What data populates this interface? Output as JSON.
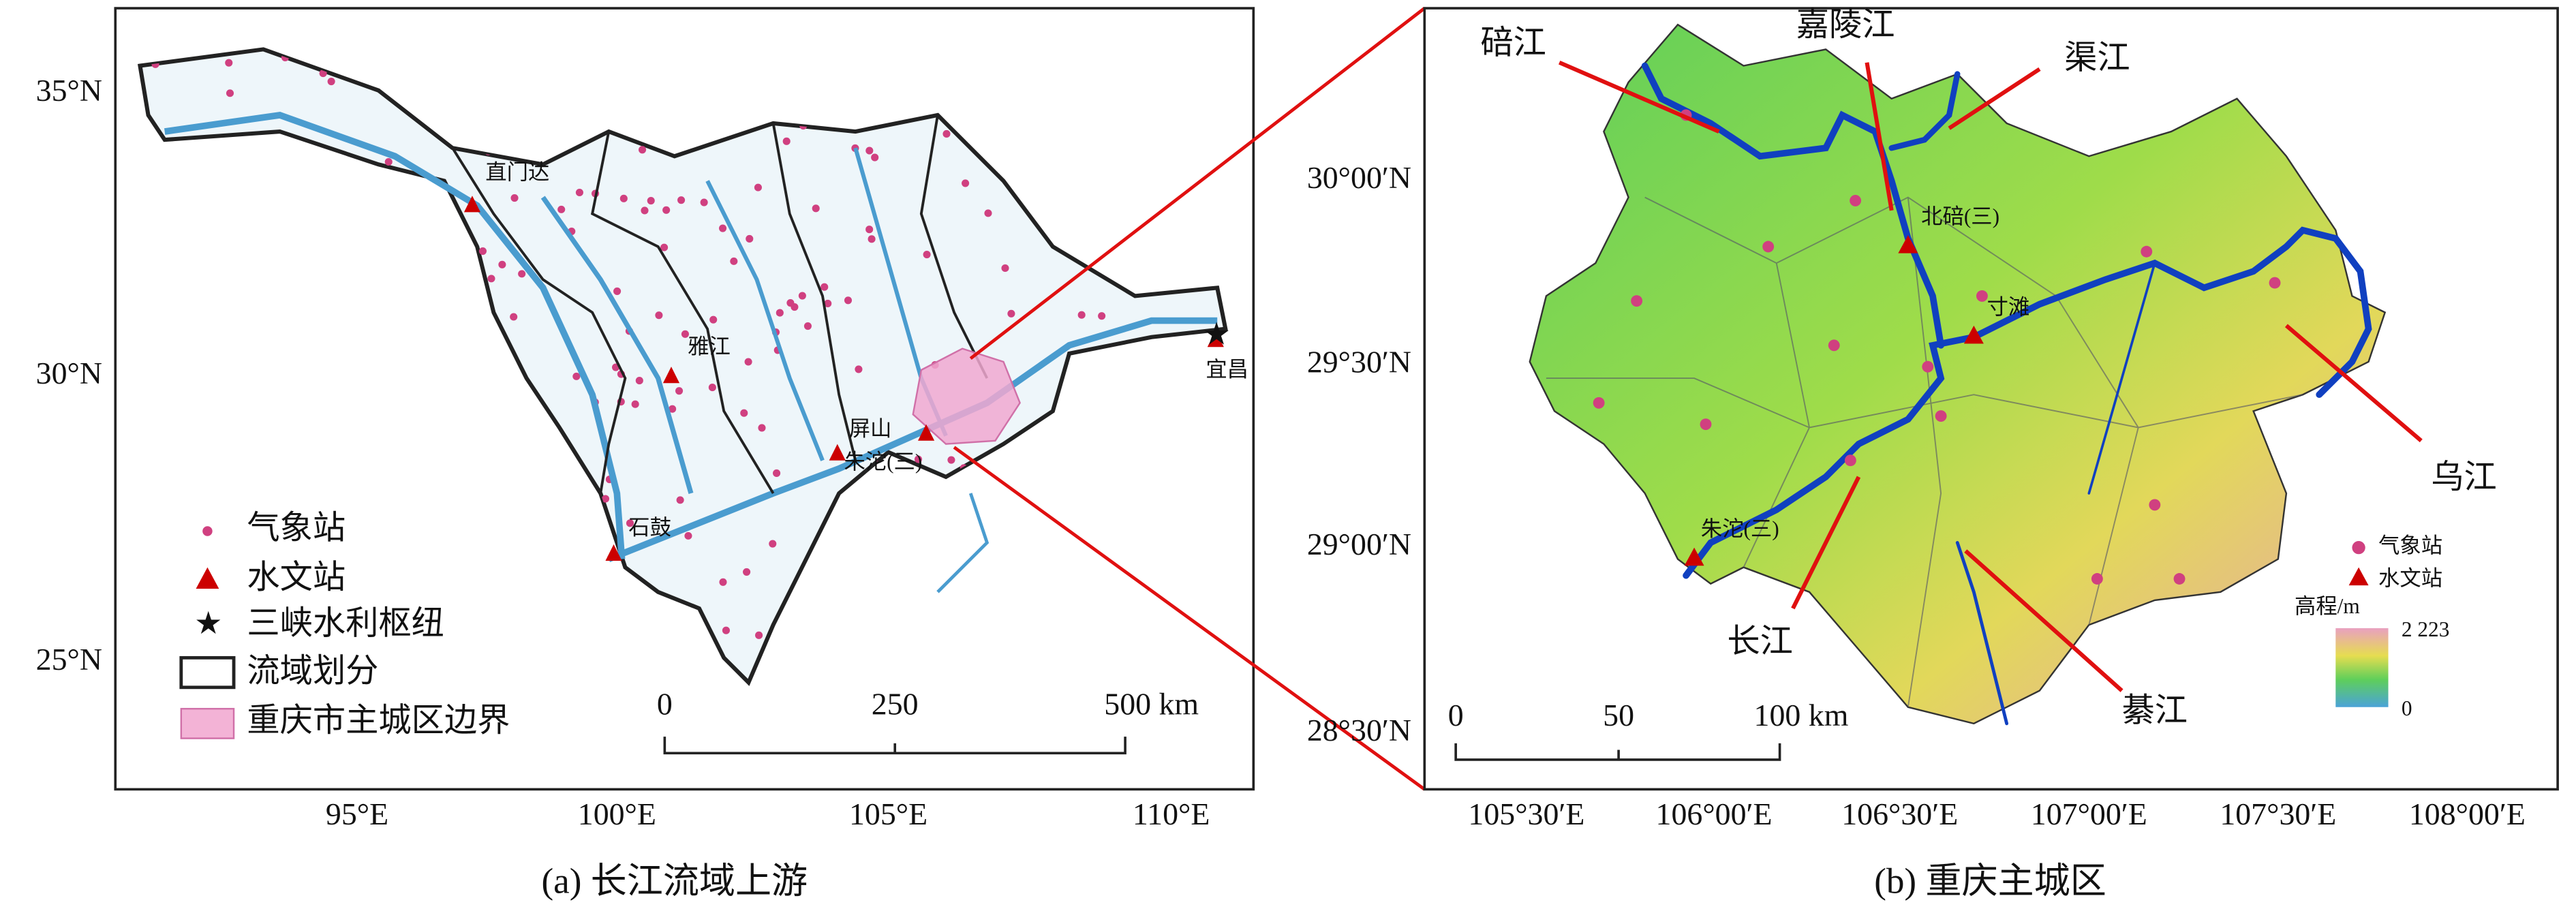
{
  "panel_a": {
    "caption": "(a) 长江流域上游",
    "y_ticks": [
      "35°N",
      "30°N",
      "25°N"
    ],
    "x_ticks": [
      "95°E",
      "100°E",
      "105°E",
      "110°E"
    ],
    "stations": [
      "直门达",
      "雅江",
      "石鼓",
      "屏山",
      "朱沱(三)",
      "宜昌"
    ],
    "legend": [
      "气象站",
      "水文站",
      "三峡水利枢纽",
      "流域划分",
      "重庆市主城区边界"
    ],
    "scale": [
      "0",
      "250",
      "500 km"
    ]
  },
  "panel_b": {
    "caption": "(b) 重庆主城区",
    "y_ticks": [
      "30°00′N",
      "29°30′N",
      "29°00′N",
      "28°30′N"
    ],
    "x_ticks": [
      "105°30′E",
      "106°00′E",
      "106°30′E",
      "107°00′E",
      "107°30′E",
      "108°00′E"
    ],
    "rivers": [
      "碚江",
      "嘉陵江",
      "渠江",
      "乌江",
      "长江",
      "綦江"
    ],
    "stations": [
      "北碚(三)",
      "寸滩",
      "朱沱(三)"
    ],
    "legend": [
      "气象站",
      "水文站"
    ],
    "colorbar": {
      "title": "高程/m",
      "max": "2 223",
      "min": "0"
    },
    "scale": [
      "0",
      "50",
      "100 km"
    ]
  }
}
